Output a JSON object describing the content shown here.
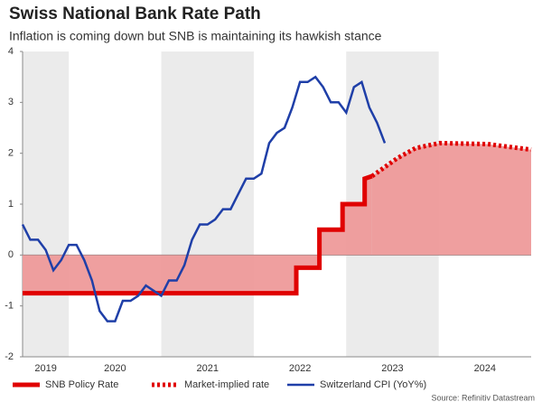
{
  "chart_data": {
    "type": "line",
    "title": "Swiss National Bank Rate Path",
    "subtitle": "Inflation is coming down but SNB is maintaining its hawkish stance",
    "source": "Source: Refinitiv Datastream",
    "xlim": [
      2019.5,
      2025
    ],
    "xticks": [
      {
        "value": 2019.75,
        "label": "2019"
      },
      {
        "value": 2020.5,
        "label": "2020"
      },
      {
        "value": 2021.5,
        "label": "2021"
      },
      {
        "value": 2022.5,
        "label": "2022"
      },
      {
        "value": 2023.5,
        "label": "2023"
      },
      {
        "value": 2024.5,
        "label": "2024"
      }
    ],
    "shaded_years": [
      2019,
      2021,
      2023
    ],
    "ylim": [
      -2,
      4
    ],
    "yticks": [
      -2,
      -1,
      0,
      1,
      2,
      3,
      4
    ],
    "series": [
      {
        "name": "SNB Policy Rate",
        "color": "#e00000",
        "style": "solid",
        "area": "#ee9a9a",
        "x": [
          2019.5,
          2022.46,
          2022.46,
          2022.71,
          2022.71,
          2022.96,
          2022.96,
          2023.2,
          2023.2,
          2023.28
        ],
        "values": [
          -0.75,
          -0.75,
          -0.25,
          -0.25,
          0.5,
          0.5,
          1.0,
          1.0,
          1.5,
          1.55
        ]
      },
      {
        "name": "Market-implied rate",
        "color": "#e00000",
        "style": "dotted",
        "area": "#ee9a9a",
        "x": [
          2023.28,
          2023.55,
          2023.75,
          2024.01,
          2024.53,
          2025.0
        ],
        "values": [
          1.55,
          1.9,
          2.1,
          2.2,
          2.18,
          2.07
        ]
      },
      {
        "name": "Switzerland CPI (YoY%)",
        "color": "#1f3fa8",
        "style": "solid",
        "x": [
          2019.5,
          2019.583,
          2019.667,
          2019.75,
          2019.833,
          2019.917,
          2020.0,
          2020.083,
          2020.167,
          2020.25,
          2020.333,
          2020.417,
          2020.5,
          2020.583,
          2020.667,
          2020.75,
          2020.833,
          2020.917,
          2021.0,
          2021.083,
          2021.167,
          2021.25,
          2021.333,
          2021.417,
          2021.5,
          2021.583,
          2021.667,
          2021.75,
          2021.833,
          2021.917,
          2022.0,
          2022.083,
          2022.167,
          2022.25,
          2022.333,
          2022.417,
          2022.5,
          2022.583,
          2022.667,
          2022.75,
          2022.833,
          2022.917,
          2023.0,
          2023.083,
          2023.167,
          2023.25,
          2023.333,
          2023.417
        ],
        "values": [
          0.6,
          0.3,
          0.3,
          0.1,
          -0.3,
          -0.1,
          0.2,
          0.2,
          -0.1,
          -0.5,
          -1.1,
          -1.3,
          -1.3,
          -0.9,
          -0.9,
          -0.8,
          -0.6,
          -0.7,
          -0.8,
          -0.5,
          -0.5,
          -0.2,
          0.3,
          0.6,
          0.6,
          0.7,
          0.9,
          0.9,
          1.2,
          1.5,
          1.5,
          1.6,
          2.2,
          2.4,
          2.5,
          2.9,
          3.4,
          3.4,
          3.5,
          3.3,
          3.0,
          3.0,
          2.8,
          3.3,
          3.4,
          2.9,
          2.6,
          2.2
        ]
      }
    ]
  }
}
